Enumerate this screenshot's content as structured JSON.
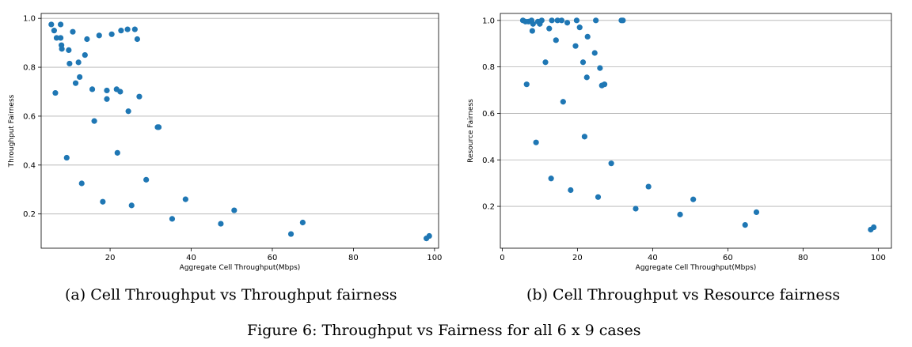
{
  "figure_caption": "Figure 6: Throughput vs Fairness for all 6 x 9 cases",
  "chart_data": [
    {
      "type": "scatter",
      "caption": "(a) Cell Throughput vs Throughput fairness",
      "xlabel": "Aggregate Cell Throughput(Mbps)",
      "ylabel": "Throughput Fairness",
      "xlim": [
        3,
        101
      ],
      "ylim": [
        0.06,
        1.02
      ],
      "xticks": [
        20,
        40,
        60,
        80,
        100
      ],
      "yticks": [
        0.2,
        0.4,
        0.6,
        0.8,
        1.0
      ],
      "ytick_labels": [
        "0.2",
        "0.4",
        "0.6",
        "0.8",
        "1.0"
      ],
      "grid": "horizontal",
      "color": "#1f77b4",
      "points": [
        [
          5.5,
          0.975
        ],
        [
          6.2,
          0.95
        ],
        [
          6.5,
          0.695
        ],
        [
          6.8,
          0.92
        ],
        [
          7.8,
          0.975
        ],
        [
          7.8,
          0.92
        ],
        [
          8.0,
          0.89
        ],
        [
          8.1,
          0.875
        ],
        [
          9.3,
          0.43
        ],
        [
          9.8,
          0.87
        ],
        [
          10.0,
          0.815
        ],
        [
          10.8,
          0.945
        ],
        [
          11.5,
          0.735
        ],
        [
          12.2,
          0.82
        ],
        [
          12.5,
          0.76
        ],
        [
          13.0,
          0.325
        ],
        [
          13.8,
          0.85
        ],
        [
          14.3,
          0.915
        ],
        [
          15.6,
          0.71
        ],
        [
          16.1,
          0.58
        ],
        [
          17.3,
          0.93
        ],
        [
          18.2,
          0.25
        ],
        [
          19.2,
          0.705
        ],
        [
          19.2,
          0.67
        ],
        [
          20.4,
          0.935
        ],
        [
          21.6,
          0.71
        ],
        [
          21.8,
          0.45
        ],
        [
          22.5,
          0.7
        ],
        [
          22.7,
          0.95
        ],
        [
          24.3,
          0.955
        ],
        [
          24.5,
          0.62
        ],
        [
          25.3,
          0.235
        ],
        [
          26.1,
          0.955
        ],
        [
          26.7,
          0.915
        ],
        [
          27.2,
          0.68
        ],
        [
          28.9,
          0.34
        ],
        [
          31.7,
          0.555
        ],
        [
          32.0,
          0.555
        ],
        [
          35.3,
          0.18
        ],
        [
          38.6,
          0.26
        ],
        [
          47.3,
          0.16
        ],
        [
          50.6,
          0.215
        ],
        [
          64.6,
          0.118
        ],
        [
          67.5,
          0.165
        ],
        [
          98.0,
          0.1
        ],
        [
          98.7,
          0.11
        ]
      ]
    },
    {
      "type": "scatter",
      "caption": "(b) Cell Throughput vs Resource fairness",
      "xlabel": "Aggregate Cell Throughput(Mbps)",
      "ylabel": "Resource Fairness",
      "xlim": [
        -0.5,
        103.5
      ],
      "ylim": [
        0.02,
        1.03
      ],
      "xticks": [
        0,
        20,
        40,
        60,
        80,
        100
      ],
      "yticks": [
        0.2,
        0.4,
        0.6,
        0.8,
        1.0
      ],
      "ytick_labels": [
        "0.2",
        "0.4",
        "0.6",
        "0.8",
        "1.0"
      ],
      "grid": "horizontal",
      "color": "#1f77b4",
      "points": [
        [
          5.5,
          1.0
        ],
        [
          6.2,
          0.995
        ],
        [
          6.5,
          0.725
        ],
        [
          7.0,
          0.995
        ],
        [
          7.8,
          1.0
        ],
        [
          8.0,
          0.955
        ],
        [
          8.2,
          0.985
        ],
        [
          9.0,
          0.475
        ],
        [
          9.5,
          0.995
        ],
        [
          10.0,
          0.985
        ],
        [
          10.5,
          1.0
        ],
        [
          11.5,
          0.82
        ],
        [
          12.5,
          0.965
        ],
        [
          13.0,
          0.32
        ],
        [
          13.2,
          1.0
        ],
        [
          14.3,
          0.915
        ],
        [
          14.7,
          1.0
        ],
        [
          15.8,
          1.0
        ],
        [
          16.2,
          0.65
        ],
        [
          17.3,
          0.99
        ],
        [
          18.2,
          0.27
        ],
        [
          19.5,
          0.89
        ],
        [
          19.8,
          1.0
        ],
        [
          20.6,
          0.97
        ],
        [
          21.5,
          0.82
        ],
        [
          21.9,
          0.5
        ],
        [
          22.5,
          0.755
        ],
        [
          22.7,
          0.93
        ],
        [
          24.6,
          0.86
        ],
        [
          24.9,
          1.0
        ],
        [
          25.5,
          0.24
        ],
        [
          26.0,
          0.795
        ],
        [
          26.5,
          0.72
        ],
        [
          27.2,
          0.725
        ],
        [
          29.0,
          0.385
        ],
        [
          31.7,
          1.0
        ],
        [
          32.1,
          1.0
        ],
        [
          35.5,
          0.19
        ],
        [
          38.9,
          0.285
        ],
        [
          47.3,
          0.165
        ],
        [
          50.8,
          0.23
        ],
        [
          64.6,
          0.12
        ],
        [
          67.6,
          0.175
        ],
        [
          98.0,
          0.1
        ],
        [
          98.8,
          0.11
        ]
      ]
    }
  ]
}
